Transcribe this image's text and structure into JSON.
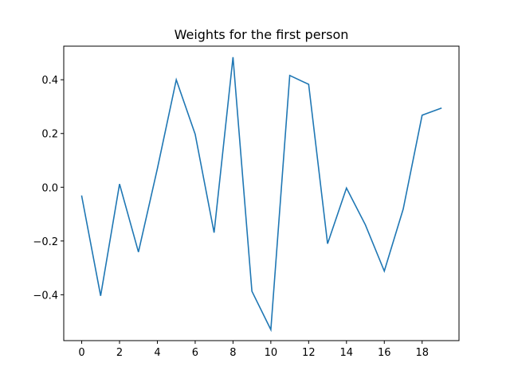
{
  "chart_data": {
    "type": "line",
    "title": "Weights for the first person",
    "xlabel": "",
    "ylabel": "",
    "x": [
      0,
      1,
      2,
      3,
      4,
      5,
      6,
      7,
      8,
      9,
      10,
      11,
      12,
      13,
      14,
      15,
      16,
      17,
      18,
      19
    ],
    "series": [
      {
        "values": [
          -0.033,
          -0.404,
          0.012,
          -0.241,
          0.069,
          0.4,
          0.197,
          -0.169,
          0.484,
          -0.387,
          -0.53,
          0.416,
          0.383,
          -0.21,
          -0.003,
          -0.14,
          -0.312,
          -0.081,
          0.268,
          0.294
        ],
        "color": "#1f77b4"
      }
    ],
    "xlim": [
      -0.95,
      19.95
    ],
    "ylim": [
      -0.5707,
      0.525
    ],
    "xticks": [
      0,
      2,
      4,
      6,
      8,
      10,
      12,
      14,
      16,
      18
    ],
    "xtick_labels": [
      "0",
      "2",
      "4",
      "6",
      "8",
      "10",
      "12",
      "14",
      "16",
      "18"
    ],
    "yticks": [
      -0.4,
      -0.2,
      0.0,
      0.2,
      0.4
    ],
    "ytick_labels": [
      "−0.4",
      "−0.2",
      "0.0",
      "0.2",
      "0.4"
    ],
    "grid": false,
    "legend": "none"
  }
}
